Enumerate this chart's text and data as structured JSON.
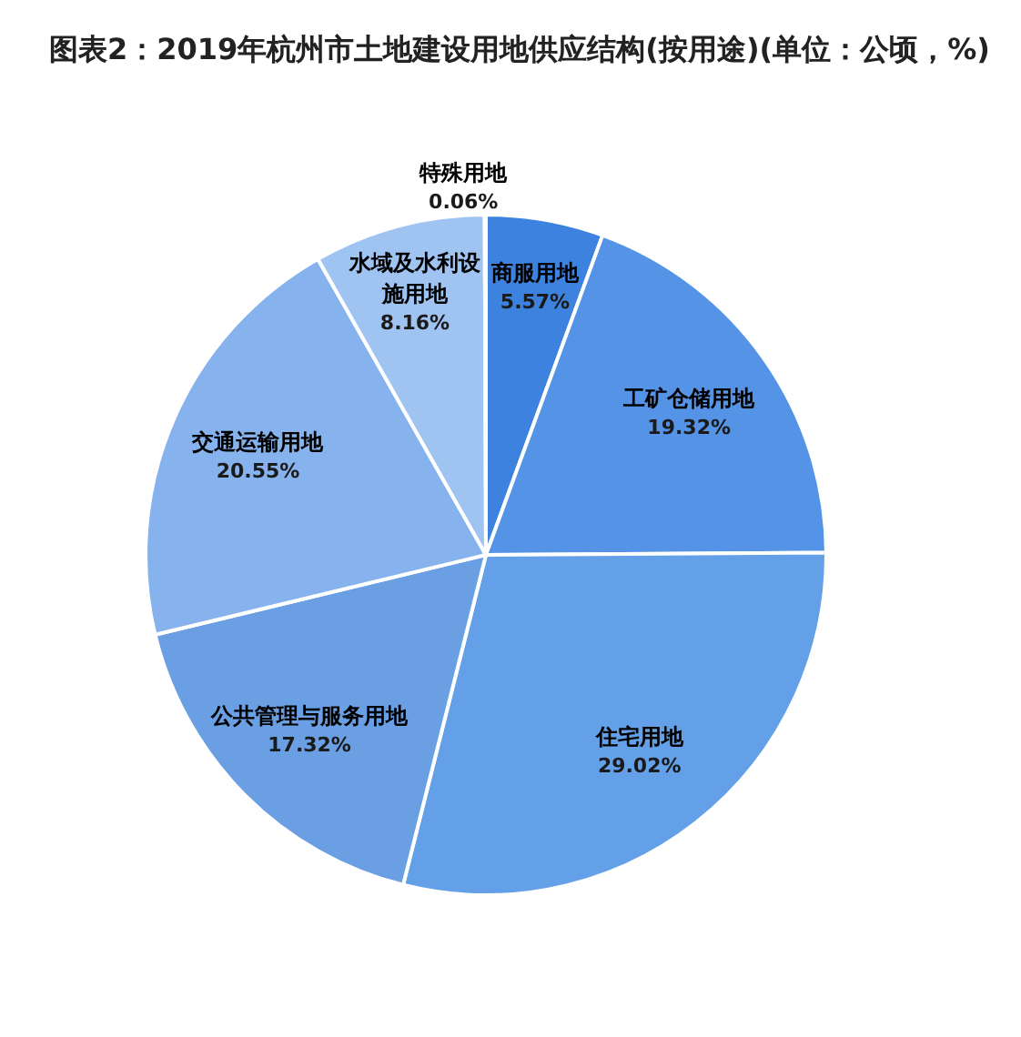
{
  "chart_data": {
    "type": "pie",
    "title": "图表2：2019年杭州市土地建设用地供应结构(按用途)(单位：公顷，%)",
    "categories": [
      "商服用地",
      "工矿仓储用地",
      "住宅用地",
      "公共管理与服务用地",
      "交通运输用地",
      "水域及水利设施用地",
      "特殊用地"
    ],
    "values": [
      5.57,
      19.32,
      29.02,
      17.32,
      20.55,
      8.16,
      0.06
    ],
    "value_labels": [
      "5.57%",
      "19.32%",
      "29.02%",
      "17.32%",
      "20.55%",
      "8.16%",
      "0.06%"
    ],
    "colors": [
      "#3d82de",
      "#5493e5",
      "#64a0e8",
      "#6a9fe4",
      "#86b2ee",
      "#a0c4f2",
      "#c5dbf7"
    ]
  }
}
